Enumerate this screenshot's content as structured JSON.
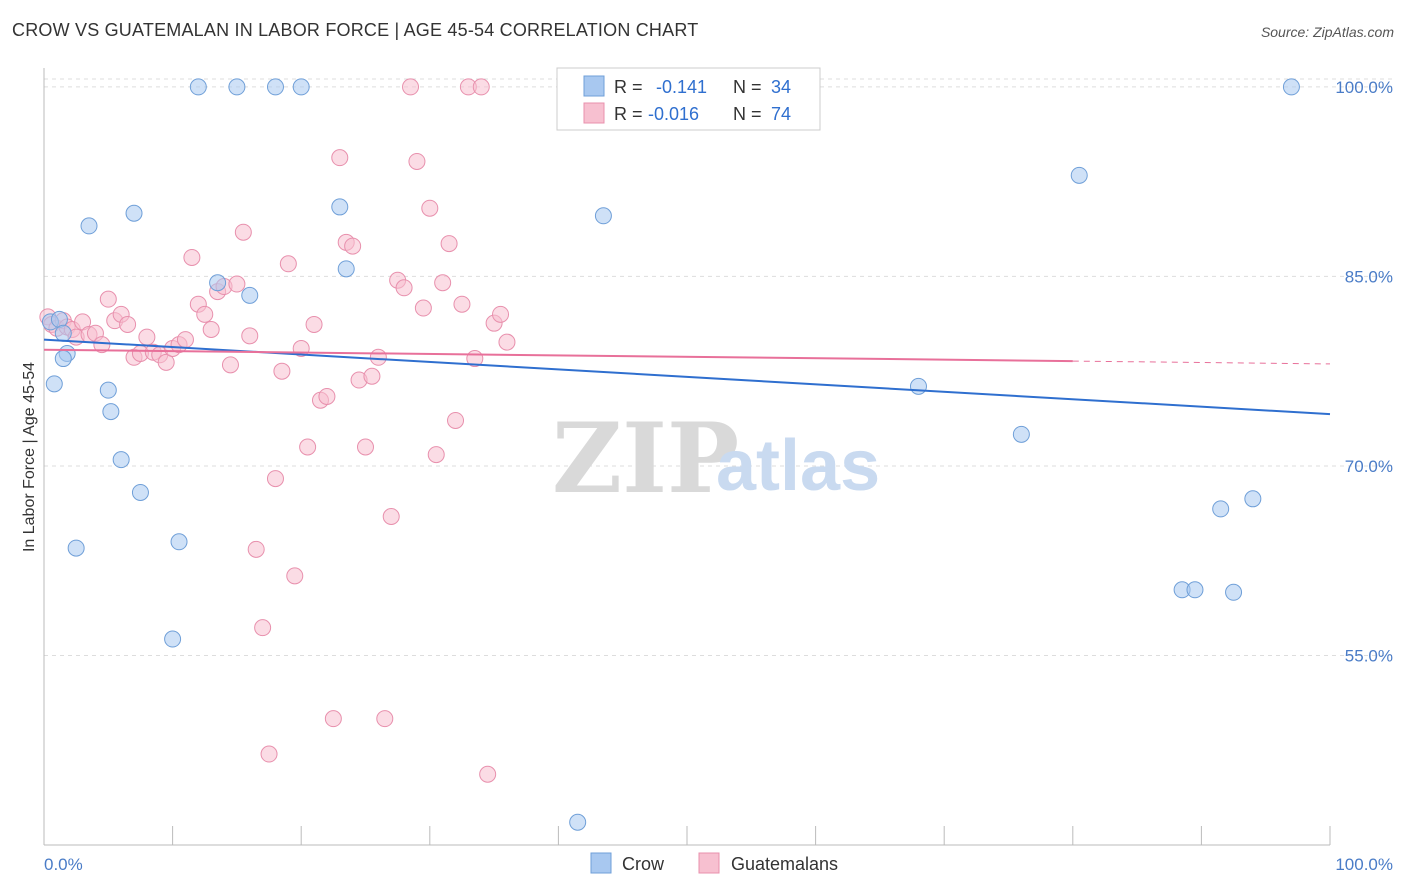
{
  "header": {
    "title": "CROW VS GUATEMALAN IN LABOR FORCE | AGE 45-54 CORRELATION CHART",
    "source": "Source: ZipAtlas.com"
  },
  "watermark": {
    "zip": "ZIP",
    "atlas": "atlas"
  },
  "legend": {
    "rows": [
      {
        "r_label": "R =",
        "r_value": "-0.141",
        "n_label": "N =",
        "n_value": "34",
        "color": "#a8c8f0"
      },
      {
        "r_label": "R =",
        "r_value": "-0.016",
        "n_label": "N =",
        "n_value": "74",
        "color": "#f7b8cb"
      }
    ]
  },
  "bottom_legend": {
    "crow": "Crow",
    "guatemalans": "Guatemalans"
  },
  "colors": {
    "crow_fill": "#a8c8f0",
    "crow_stroke": "#6f9fd8",
    "crow_line": "#2f6fcf",
    "guat_fill": "#f7c0d0",
    "guat_stroke": "#e890ad",
    "guat_line": "#e8709a",
    "axis_text": "#4a7cc7",
    "grid": "#dddddd"
  },
  "chart_data": {
    "type": "scatter",
    "title": "CROW VS GUATEMALAN IN LABOR FORCE | AGE 45-54 CORRELATION CHART",
    "xlabel": "",
    "ylabel": "In Labor Force | Age 45-54",
    "xlim": [
      0,
      100
    ],
    "ylim": [
      40,
      103
    ],
    "x_tick_labels": [
      "0.0%",
      "100.0%"
    ],
    "y_ticks": [
      55,
      70,
      85,
      100
    ],
    "y_tick_labels": [
      "55.0%",
      "70.0%",
      "85.0%",
      "100.0%"
    ],
    "grid": true,
    "legend_position": "top-center",
    "series": [
      {
        "name": "Crow",
        "x": [
          0.5,
          0.8,
          1.2,
          1.8,
          2.5,
          3.5,
          5,
          5.2,
          6,
          7.5,
          10,
          10.5,
          12,
          13.5,
          15,
          16,
          18,
          20,
          23,
          23.5,
          41.5,
          43.5,
          68,
          76,
          80.5,
          88.5,
          89.5,
          91.5,
          92.5,
          94,
          97,
          1.5,
          1.5,
          7
        ],
        "y": [
          81.4,
          76.5,
          81.6,
          78.9,
          63.5,
          89.0,
          76.0,
          74.3,
          70.5,
          67.9,
          56.3,
          64.0,
          100.0,
          84.5,
          100.0,
          83.5,
          100.0,
          100.0,
          90.5,
          85.6,
          41.8,
          89.8,
          76.3,
          72.5,
          93.0,
          60.2,
          60.2,
          66.6,
          60.0,
          67.4,
          100.0,
          80.5,
          78.5,
          90.0
        ]
      },
      {
        "name": "Guatemalans",
        "x": [
          0.3,
          0.6,
          1,
          1.5,
          1.8,
          2.2,
          2.5,
          3,
          3.5,
          4,
          4.5,
          5,
          5.5,
          6,
          6.5,
          7,
          7.5,
          8,
          8.5,
          9,
          9.5,
          10,
          10.5,
          11,
          11.5,
          12,
          12.5,
          13,
          13.5,
          14,
          14.5,
          15,
          15.5,
          16,
          16.5,
          17,
          17.5,
          18,
          18.5,
          19,
          19.5,
          20,
          20.5,
          21,
          21.5,
          22,
          22.5,
          23,
          23.5,
          24,
          24.5,
          25,
          25.5,
          26,
          26.5,
          27,
          27.5,
          28,
          28.5,
          29,
          29.5,
          30,
          30.5,
          31,
          31.5,
          32,
          32.5,
          33,
          33.5,
          34,
          34.5,
          35,
          35.5,
          36
        ],
        "y": [
          81.8,
          81.2,
          80.9,
          81.5,
          81.0,
          80.8,
          80.2,
          81.4,
          80.4,
          80.5,
          79.6,
          83.2,
          81.5,
          82.0,
          81.2,
          78.6,
          78.9,
          80.2,
          79.0,
          78.8,
          78.2,
          79.3,
          79.6,
          80.0,
          86.5,
          82.8,
          82.0,
          80.8,
          83.8,
          84.2,
          78.0,
          84.4,
          88.5,
          80.3,
          63.4,
          57.2,
          47.2,
          69.0,
          77.5,
          86.0,
          61.3,
          79.3,
          71.5,
          81.2,
          75.2,
          75.5,
          50.0,
          94.4,
          87.7,
          87.4,
          76.8,
          71.5,
          77.1,
          78.6,
          50.0,
          66.0,
          84.7,
          84.1,
          100.0,
          94.1,
          82.5,
          90.4,
          70.9,
          84.5,
          87.6,
          73.6,
          82.8,
          100.0,
          78.5,
          100.0,
          45.6,
          81.3,
          82.0,
          79.8
        ]
      }
    ],
    "trend_lines": [
      {
        "name": "Crow",
        "x": [
          0,
          100
        ],
        "y": [
          80.0,
          74.1
        ]
      },
      {
        "name": "Guatemalans",
        "x": [
          0,
          80
        ],
        "y": [
          79.2,
          78.3
        ]
      }
    ]
  }
}
